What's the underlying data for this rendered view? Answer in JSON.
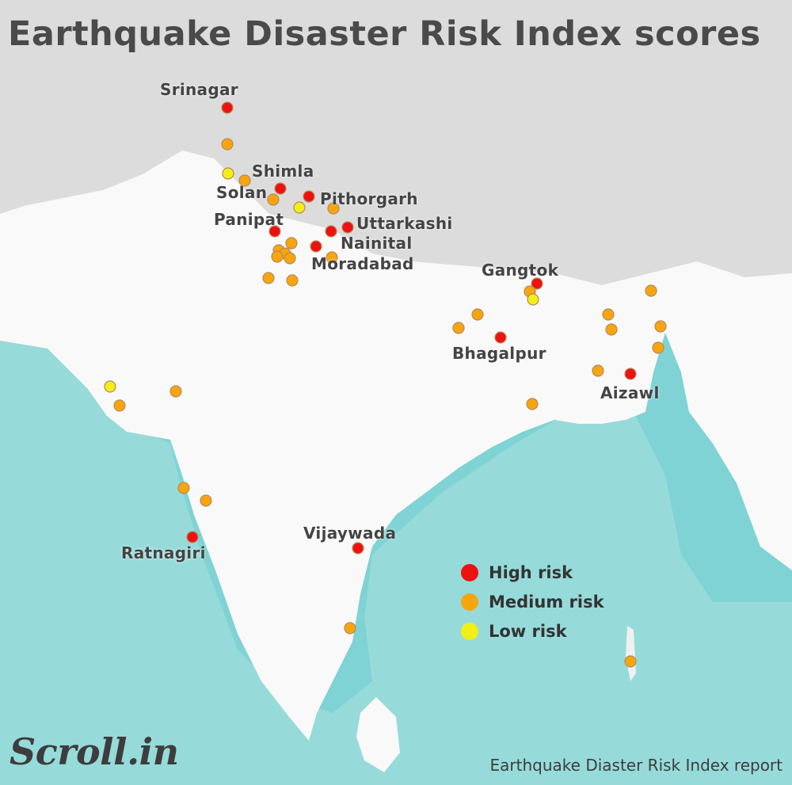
{
  "title": "Earthquake Disaster Risk Index scores",
  "colors": {
    "high": "#ee1111",
    "medium": "#f7a50f",
    "low": "#f2ee18",
    "sea": "#7fd3d4",
    "land": "#ffffff",
    "mountains": "#d6d6d6"
  },
  "map_labels": [
    {
      "name": "srinagar",
      "text": "Srinagar"
    },
    {
      "name": "shimla",
      "text": "Shimla"
    },
    {
      "name": "solan",
      "text": "Solan"
    },
    {
      "name": "pithorgarh",
      "text": "Pithorgarh"
    },
    {
      "name": "panipat",
      "text": "Panipat"
    },
    {
      "name": "uttarkashi",
      "text": "Uttarkashi"
    },
    {
      "name": "nainital",
      "text": "Nainital"
    },
    {
      "name": "moradabad",
      "text": "Moradabad"
    },
    {
      "name": "gangtok",
      "text": "Gangtok"
    },
    {
      "name": "bhagalpur",
      "text": "Bhagalpur"
    },
    {
      "name": "aizawl",
      "text": "Aizawl"
    },
    {
      "name": "vijaywada",
      "text": "Vijaywada"
    },
    {
      "name": "ratnagiri",
      "text": "Ratnagiri"
    }
  ],
  "legend": [
    {
      "level": "high",
      "label": "High risk"
    },
    {
      "level": "medium",
      "label": "Medium risk"
    },
    {
      "level": "low",
      "label": "Low risk"
    }
  ],
  "logo_text": "Scroll.in",
  "source": "Earthquake Diaster Risk Index report"
}
